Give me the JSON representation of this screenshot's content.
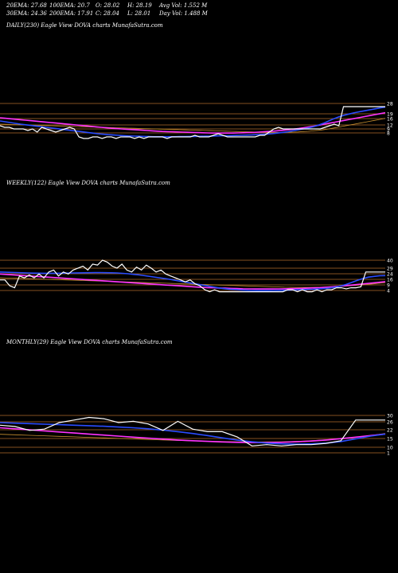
{
  "header": {
    "ema20": "20EMA: 27.68",
    "ema100": "100EMA: 20.7",
    "open": "O: 28.02",
    "high": "H: 28.19",
    "avg_vol": "Avg Vol: 1.552  M",
    "ema30": "30EMA: 24.36",
    "ema200": "200EMA: 17.91",
    "close": "C: 28.04",
    "low": "L: 28.01",
    "day_vol": "Day Vol: 1.488  M"
  },
  "colors": {
    "background": "#000000",
    "price": "#ffffff",
    "ema_blue": "#2a4cff",
    "ema_magenta": "#ff33ff",
    "ema_gold": "#c89030",
    "level_line": "#b06a2a"
  },
  "chart_data": [
    {
      "type": "line",
      "title": "DAILY(230) Eagle  View  DOVA charts MunafaSutra.com",
      "tick_labels": [
        "28",
        "19",
        "16",
        "12",
        "9",
        "8"
      ],
      "level_values": [
        28,
        19,
        16,
        12,
        9,
        8
      ],
      "ylim": [
        6,
        30
      ],
      "series": [
        {
          "color": "#ffffff",
          "values": [
            16,
            15,
            15,
            14,
            14,
            14,
            13,
            14,
            12,
            15,
            14,
            13,
            12,
            13,
            14,
            15,
            14,
            9,
            8,
            8,
            9,
            9,
            8,
            9,
            9,
            8,
            9,
            9,
            9,
            8,
            9,
            8,
            9,
            9,
            9,
            9,
            8,
            9,
            9,
            9,
            9,
            9,
            10,
            9,
            9,
            9,
            10,
            11,
            10,
            9,
            9,
            9,
            9,
            9,
            9,
            9,
            10,
            10,
            12,
            14,
            15,
            14,
            14,
            14,
            14,
            14,
            14,
            14,
            14,
            14,
            15,
            16,
            17,
            16,
            28,
            28,
            28,
            28,
            28,
            28,
            28,
            28,
            28,
            28
          ]
        },
        {
          "color": "#2a4cff",
          "values": [
            19,
            18.5,
            18,
            17.5,
            17,
            16.6,
            16.2,
            15.8,
            15.4,
            15,
            14.6,
            14.2,
            13.8,
            13.4,
            13,
            12.6,
            12.2,
            11.8,
            11.4,
            11,
            10.7,
            10.4,
            10.2,
            10,
            9.8,
            9.6,
            9.5,
            9.4,
            9.3,
            9.2,
            9.1,
            9.1,
            9.1,
            9.1,
            9.1,
            9.2,
            9.2,
            9.3,
            9.3,
            9.4,
            9.5,
            9.5,
            9.6,
            9.7,
            9.7,
            9.8,
            9.9,
            10,
            10.1,
            10.2,
            10.4,
            10.6,
            10.8,
            11,
            11.4,
            11.8,
            12.2,
            12.8,
            13.4,
            14,
            14.6,
            15.4,
            16.4,
            17.6,
            19,
            20.4,
            21.6,
            22.6,
            23.4,
            24.2,
            24.8,
            25.4,
            26,
            26.6,
            27.2,
            27.7
          ]
        },
        {
          "color": "#ff33ff",
          "values": [
            21,
            20.7,
            20.4,
            20.1,
            19.8,
            19.5,
            19.2,
            18.9,
            18.6,
            18.3,
            18,
            17.7,
            17.4,
            17.1,
            16.8,
            16.5,
            16.2,
            15.9,
            15.6,
            15.3,
            15,
            14.7,
            14.4,
            14.2,
            14,
            13.8,
            13.6,
            13.4,
            13.2,
            13,
            12.8,
            12.6,
            12.4,
            12.3,
            12.2,
            12.1,
            12,
            11.9,
            11.8,
            11.7,
            11.6,
            11.5,
            11.4,
            11.4,
            11.4,
            11.4,
            11.4,
            11.5,
            11.6,
            11.7,
            11.8,
            12,
            12.2,
            12.4,
            12.6,
            12.9,
            13.2,
            13.5,
            13.9,
            14.3,
            14.8,
            15.3,
            15.8,
            16.4,
            17,
            17.6,
            18.2,
            18.8,
            19.4,
            20,
            20.6,
            21.2,
            21.8,
            22.4,
            23,
            23.6,
            24.2
          ]
        },
        {
          "color": "#c89030",
          "values": [
            17,
            16.9,
            16.8,
            16.7,
            16.6,
            16.5,
            16.4,
            16.3,
            16.2,
            16.1,
            16,
            15.9,
            15.8,
            15.7,
            15.6,
            15.5,
            15.4,
            15.3,
            15.2,
            15.1,
            15,
            14.9,
            14.8,
            14.7,
            14.6,
            14.5,
            14.4,
            14.3,
            14.2,
            14.1,
            14,
            13.9,
            13.8,
            13.7,
            13.6,
            13.5,
            13.4,
            13.3,
            13.2,
            13.1,
            13,
            12.9,
            12.8,
            12.7,
            12.6,
            12.5,
            12.4,
            12.3,
            12.2,
            12.1,
            12,
            11.9,
            11.8,
            11.8,
            11.8,
            11.8,
            11.9,
            12,
            12.1,
            12.3,
            12.5,
            12.8,
            13.1,
            13.5,
            14,
            14.6,
            15.2,
            15.8,
            16.4,
            17,
            17.6,
            18.2,
            18.8,
            19.4,
            20,
            20.7
          ]
        }
      ]
    },
    {
      "type": "line",
      "title": "WEEKLY(122) Eagle  View  DOVA charts MunafaSutra.com",
      "tick_labels": [
        "40",
        "29",
        "24",
        "16",
        "9",
        "4"
      ],
      "level_values": [
        40,
        29,
        24,
        16,
        9,
        4
      ],
      "ylim": [
        2,
        44
      ],
      "series": [
        {
          "color": "#ffffff",
          "values": [
            20,
            20,
            14,
            12,
            24,
            22,
            25,
            22,
            26,
            22,
            28,
            30,
            24,
            28,
            26,
            30,
            32,
            34,
            30,
            36,
            35,
            40,
            38,
            34,
            32,
            36,
            30,
            28,
            33,
            30,
            35,
            32,
            28,
            30,
            26,
            24,
            22,
            20,
            18,
            20,
            16,
            14,
            10,
            8,
            10,
            8,
            8,
            8,
            8,
            8,
            8,
            8,
            8,
            8,
            8,
            8,
            8,
            8,
            8,
            10,
            10,
            8,
            10,
            8,
            8,
            10,
            8,
            10,
            10,
            12,
            12,
            11,
            12,
            12,
            13,
            28,
            28,
            28,
            28,
            28
          ]
        },
        {
          "color": "#2a4cff",
          "values": [
            28,
            27.8,
            27.6,
            27.4,
            27.2,
            27,
            26.9,
            26.8,
            26.7,
            26.7,
            26.7,
            26.8,
            26.9,
            27,
            27.1,
            27.2,
            27.3,
            27.4,
            27.4,
            27.3,
            27.2,
            27,
            26.6,
            26.2,
            25.6,
            25,
            24.2,
            23.4,
            22.6,
            21.8,
            21,
            20,
            19,
            18,
            17,
            16,
            15,
            14,
            13,
            12,
            11.2,
            10.6,
            10.2,
            9.8,
            9.5,
            9.3,
            9.2,
            9.2,
            9.2,
            9.3,
            9.4,
            9.5,
            9.7,
            9.9,
            10.1,
            10.3,
            10.5,
            10.8,
            11.2,
            11.8,
            12.6,
            13.8,
            15.4,
            17.4,
            19.6,
            21.4,
            22.8,
            23.6,
            24.2,
            24.4
          ]
        },
        {
          "color": "#ff33ff",
          "values": [
            26,
            25.6,
            25.2,
            24.8,
            24.4,
            24,
            23.6,
            23.2,
            22.8,
            22.4,
            22,
            21.6,
            21.2,
            20.8,
            20.4,
            20,
            19.6,
            19.2,
            18.8,
            18.4,
            18,
            17.6,
            17.2,
            16.8,
            16.4,
            16,
            15.6,
            15.2,
            14.8,
            14.4,
            14,
            13.6,
            13.2,
            12.8,
            12.4,
            12.2,
            12,
            11.8,
            11.6,
            11.4,
            11.2,
            11,
            10.9,
            10.8,
            10.8,
            10.8,
            10.8,
            10.9,
            11,
            11.1,
            11.2,
            11.4,
            11.6,
            11.9,
            12.2,
            12.6,
            13,
            13.5,
            14,
            14.6,
            15.2,
            15.8,
            16.4,
            17,
            17.6,
            18.2
          ]
        },
        {
          "color": "#c89030",
          "values": [
            22,
            21.9,
            21.8,
            21.6,
            21.4,
            21.2,
            21,
            20.8,
            20.6,
            20.4,
            20.2,
            20,
            19.8,
            19.6,
            19.4,
            19.2,
            19,
            18.8,
            18.6,
            18.4,
            18.2,
            18,
            17.8,
            17.6,
            17.4,
            17.2,
            17,
            16.8,
            16.6,
            16.4,
            16.2,
            16,
            15.8,
            15.6,
            15.4,
            15.2,
            15,
            14.8,
            14.6,
            14.4,
            14.2,
            14,
            13.8,
            13.6,
            13.4,
            13.2,
            13,
            12.8,
            12.6,
            12.5,
            12.4,
            12.4,
            12.4,
            12.5,
            12.6,
            12.8,
            13,
            13.3,
            13.6,
            14,
            14.4,
            14.9,
            15.4,
            16,
            16.6,
            17.3
          ]
        }
      ]
    },
    {
      "type": "line",
      "title": "MONTHLY(29) Eagle  View  DOVA charts MunafaSutra.com",
      "tick_labels": [
        "30",
        "26",
        "22",
        "15",
        "10",
        "1"
      ],
      "level_values": [
        30,
        26,
        22,
        15,
        10,
        1
      ],
      "ylim": [
        -1,
        34
      ],
      "series": [
        {
          "color": "#ffffff",
          "values": [
            24,
            23,
            20,
            21,
            26,
            28,
            30,
            29,
            26,
            27,
            25,
            20,
            27,
            21,
            19,
            19,
            15,
            8,
            9,
            8,
            9,
            9,
            10,
            12,
            28,
            28,
            28
          ]
        },
        {
          "color": "#2a4cff",
          "values": [
            26,
            25.6,
            25.2,
            24.8,
            24.4,
            24,
            23.6,
            23.2,
            22.6,
            22,
            21.2,
            20.2,
            19,
            17.6,
            16,
            14.2,
            12.6,
            11.2,
            10.2,
            9.6,
            9.4,
            9.6,
            10.2,
            11.4,
            13.4,
            15.6,
            17.2
          ]
        },
        {
          "color": "#ff33ff",
          "values": [
            22,
            21.2,
            20.4,
            19.6,
            18.8,
            18,
            17.2,
            16.4,
            15.6,
            14.8,
            14,
            13.3,
            12.6,
            12,
            11.5,
            11.1,
            10.8,
            10.6,
            10.6,
            10.8,
            11.2,
            11.8,
            12.6,
            13.6,
            14.8,
            16,
            17.2
          ]
        },
        {
          "color": "#c89030",
          "values": [
            17,
            16.6,
            16.2,
            15.8,
            15.4,
            15,
            14.6,
            14.2,
            13.8,
            13.4,
            13,
            12.6,
            12.2,
            11.9,
            11.6,
            11.4,
            11.2,
            11.1,
            11.1,
            11.2,
            11.5,
            12,
            12.7,
            13.6,
            14.7,
            16,
            17.6
          ]
        }
      ]
    }
  ]
}
